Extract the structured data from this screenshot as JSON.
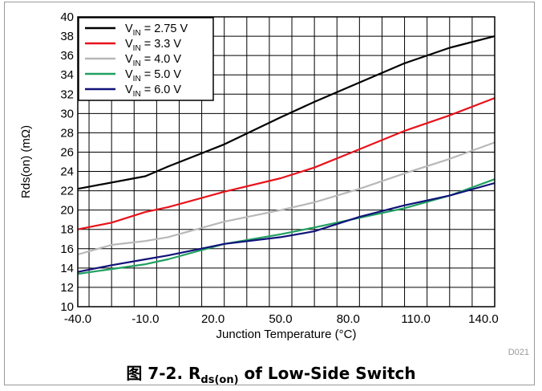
{
  "caption": {
    "prefix": "图 7-2. R",
    "subscript": "ds(on)",
    "suffix": " of Low-Side Switch"
  },
  "figure_code": "D021",
  "chart_data": {
    "type": "line",
    "xlabel": "Junction Temperature (°C)",
    "ylabel": "Rds(on) (mΩ)",
    "xlim": [
      -40,
      145
    ],
    "ylim": [
      10,
      40
    ],
    "x_tick_labels": [
      "-40.0",
      "-10.0",
      "20.0",
      "50.0",
      "80.0",
      "110.0",
      "140.0"
    ],
    "y_tick_labels": [
      "10",
      "12",
      "14",
      "16",
      "18",
      "20",
      "22",
      "24",
      "26",
      "28",
      "30",
      "32",
      "34",
      "36",
      "38",
      "40"
    ],
    "grid": true,
    "legend_position": "top-left",
    "series": [
      {
        "name_main": "V",
        "name_sub": "IN",
        "name_rest": " = 2.75 V",
        "color": "#000000",
        "x": [
          -40,
          -10,
          0,
          25,
          50,
          65,
          85,
          105,
          125,
          145
        ],
        "y": [
          22.2,
          23.5,
          24.5,
          26.8,
          29.6,
          31.2,
          33.2,
          35.2,
          36.8,
          38
        ]
      },
      {
        "name_main": "V",
        "name_sub": "IN",
        "name_rest": " = 3.3 V",
        "color": "#e8121b",
        "x": [
          -40,
          -25,
          -10,
          0,
          25,
          50,
          65,
          85,
          105,
          125,
          145
        ],
        "y": [
          18,
          18.7,
          19.8,
          20.3,
          21.9,
          23.3,
          24.4,
          26.3,
          28.2,
          29.8,
          31.6
        ]
      },
      {
        "name_main": "V",
        "name_sub": "IN",
        "name_rest": " = 4.0 V",
        "color": "#b8b8b8",
        "x": [
          -40,
          -25,
          -10,
          0,
          25,
          50,
          65,
          85,
          105,
          125,
          145
        ],
        "y": [
          15.4,
          16.4,
          16.8,
          17.2,
          18.8,
          20,
          20.8,
          22.2,
          23.8,
          25.3,
          27
        ]
      },
      {
        "name_main": "V",
        "name_sub": "IN",
        "name_rest": " = 5.0 V",
        "color": "#20a060",
        "x": [
          -40,
          -25,
          -10,
          0,
          25,
          50,
          65,
          85,
          105,
          125,
          145
        ],
        "y": [
          13.4,
          13.9,
          14.4,
          14.9,
          16.5,
          17.5,
          18.2,
          19.2,
          20.2,
          21.5,
          23.2
        ]
      },
      {
        "name_main": "V",
        "name_sub": "IN",
        "name_rest": " = 6.0 V",
        "color": "#10127a",
        "x": [
          -40,
          -25,
          -10,
          0,
          25,
          50,
          65,
          85,
          105,
          125,
          145
        ],
        "y": [
          13.6,
          14.3,
          14.9,
          15.3,
          16.5,
          17.2,
          17.8,
          19.3,
          20.5,
          21.5,
          22.8
        ]
      }
    ]
  }
}
